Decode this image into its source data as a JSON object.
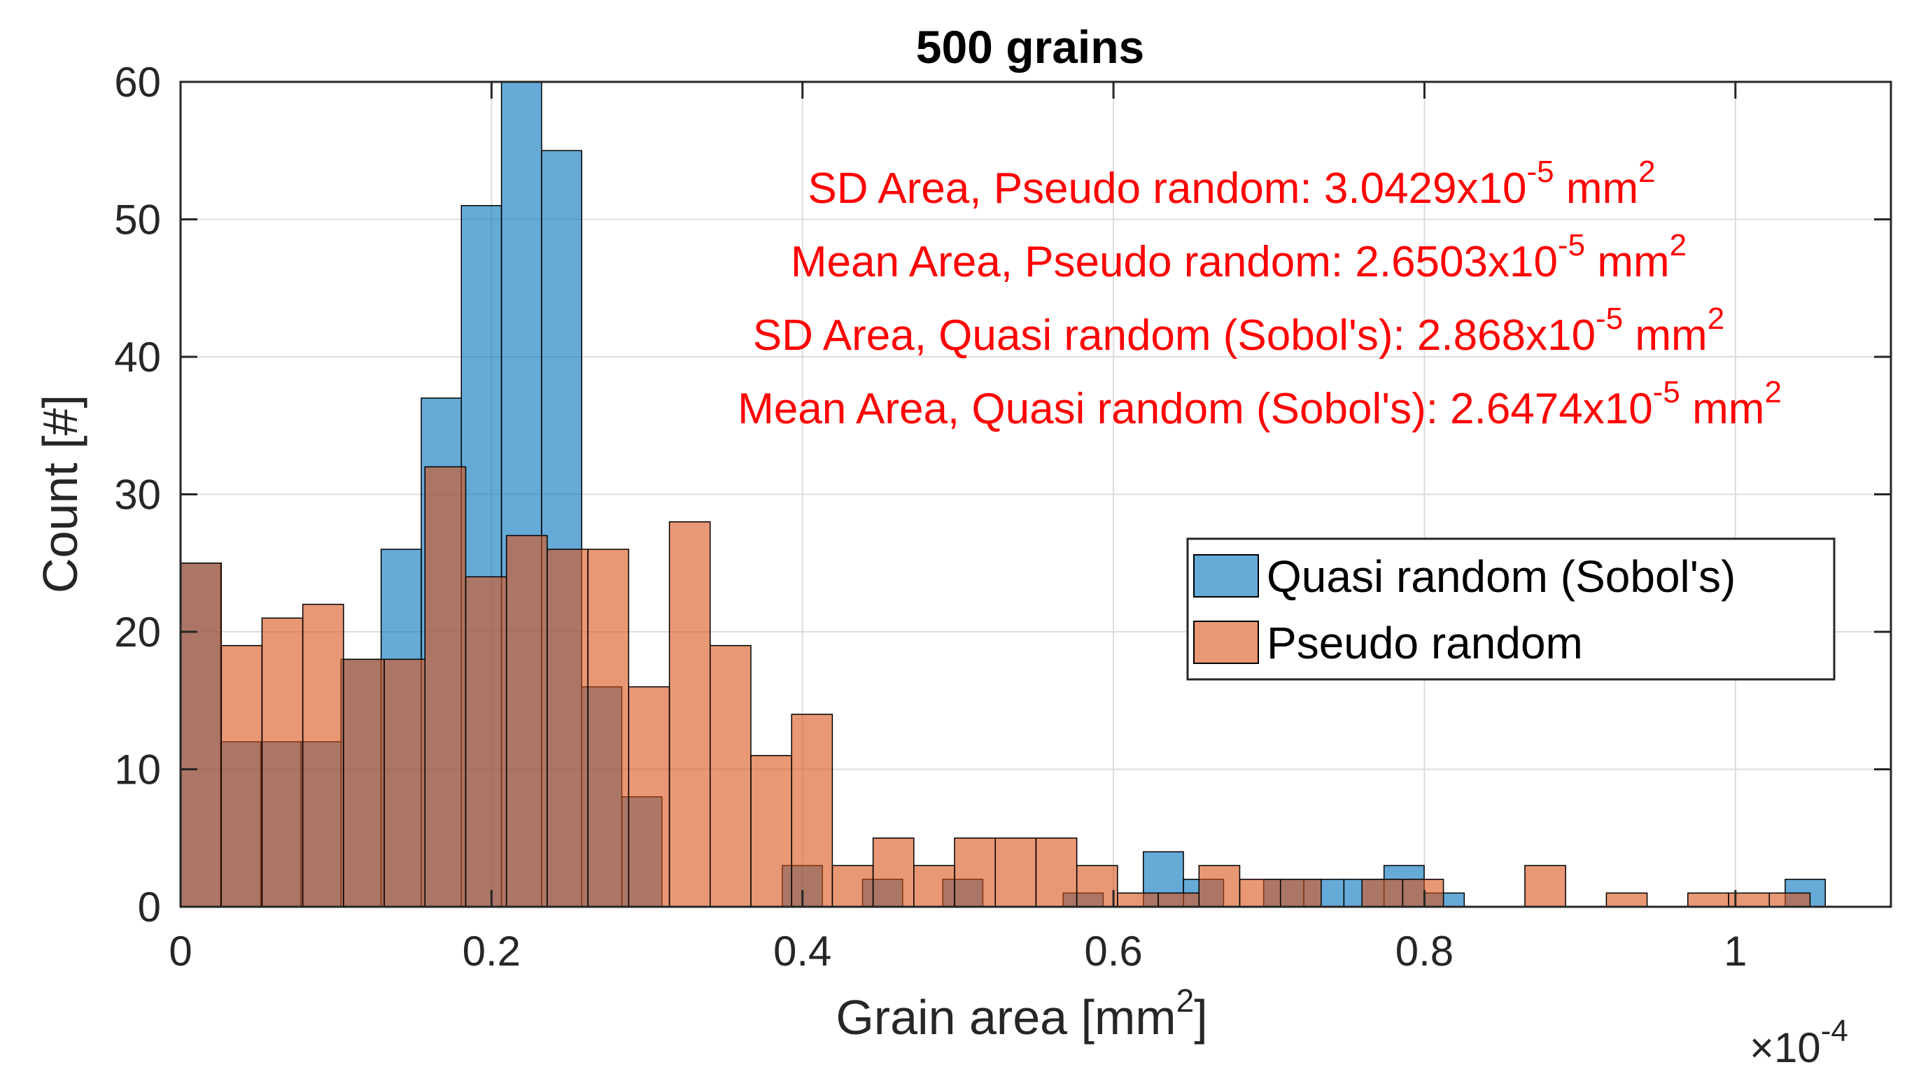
{
  "chart_data": {
    "type": "histogram",
    "title": "500 grains",
    "xlabel": "Grain area [mm",
    "xlabel_sup": "2",
    "xlabel_end": "]",
    "ylabel": "Count [#]",
    "exponent_label": {
      "prefix": "×10",
      "sup": "-4"
    },
    "xlim": [
      0,
      1.1
    ],
    "ylim": [
      0,
      60
    ],
    "xticks": [
      0,
      0.2,
      0.4,
      0.6,
      0.8,
      1
    ],
    "xtick_labels": [
      "0",
      "0.2",
      "0.4",
      "0.6",
      "0.8",
      "1"
    ],
    "yticks": [
      0,
      10,
      20,
      30,
      40,
      50,
      60
    ],
    "ytick_labels": [
      "0",
      "10",
      "20",
      "30",
      "40",
      "50",
      "60"
    ],
    "grid": true,
    "series": [
      {
        "name": "Quasi random (Sobol's)",
        "color": "#0072BD",
        "bin_start": 0,
        "bin_width": 0.0258,
        "values": [
          25,
          12,
          12,
          12,
          18,
          26,
          37,
          51,
          60,
          55,
          16,
          8,
          0,
          0,
          0,
          3,
          0,
          2,
          0,
          2,
          0,
          0,
          1,
          0,
          4,
          2,
          0,
          2,
          2,
          2,
          3,
          1,
          0,
          0,
          0,
          0,
          0,
          0,
          0,
          0,
          2
        ]
      },
      {
        "name": "Pseudo random",
        "color": "#D95319",
        "bin_start": 0,
        "bin_width": 0.0262,
        "values": [
          25,
          19,
          21,
          22,
          18,
          18,
          32,
          24,
          27,
          26,
          26,
          16,
          28,
          19,
          11,
          14,
          3,
          5,
          3,
          5,
          5,
          5,
          3,
          1,
          1,
          3,
          2,
          2,
          0,
          2,
          2,
          0,
          0,
          3,
          0,
          1,
          0,
          1,
          1,
          1
        ]
      }
    ],
    "annotations": [
      {
        "text": "SD Area, Pseudo random: 3.0429x10",
        "sup1": "-5",
        "unit": " mm",
        "sup2": "2"
      },
      {
        "text": "Mean Area, Pseudo random: 2.6503x10",
        "sup1": "-5",
        "unit": " mm",
        "sup2": "2"
      },
      {
        "text": "SD Area, Quasi random (Sobol's): 2.868x10",
        "sup1": "-5",
        "unit": " mm",
        "sup2": "2"
      },
      {
        "text": "Mean Area, Quasi random (Sobol's): 2.6474x10",
        "sup1": "-5",
        "unit": " mm",
        "sup2": "2"
      }
    ],
    "legend": {
      "location": "east",
      "entries": [
        "Quasi random (Sobol's)",
        "Pseudo random"
      ]
    }
  }
}
